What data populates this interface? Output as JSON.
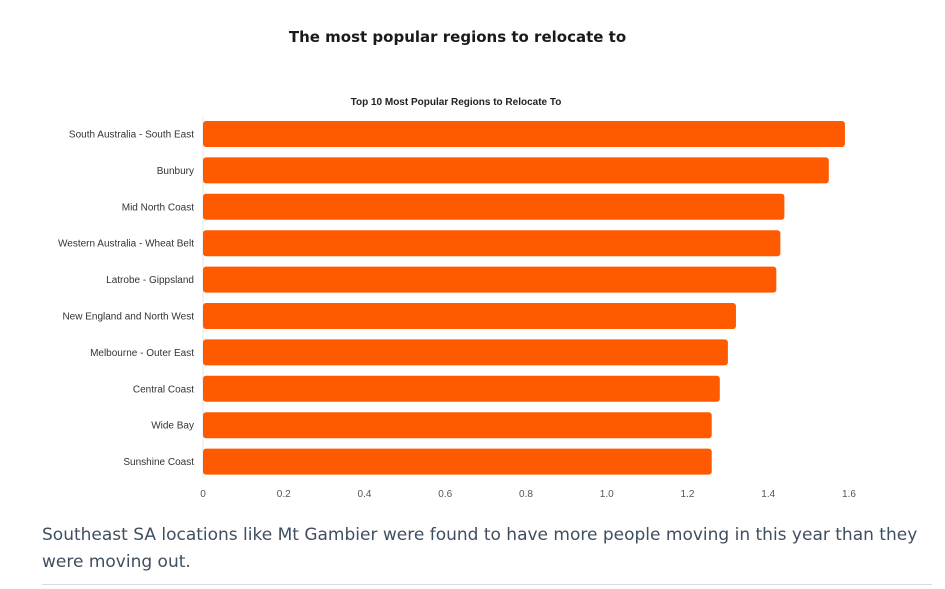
{
  "page": {
    "heading": "The most popular regions to relocate to",
    "caption": "Southeast SA locations like Mt Gambier were found to have more people moving in this year than they were moving out."
  },
  "chart_data": {
    "type": "bar",
    "orientation": "horizontal",
    "title": "Top 10 Most Popular Regions to Relocate To",
    "xlabel": "",
    "ylabel": "",
    "categories": [
      "South Australia - South East",
      "Bunbury",
      "Mid North Coast",
      "Western Australia - Wheat Belt",
      "Latrobe - Gippsland",
      "New England and North West",
      "Melbourne - Outer East",
      "Central Coast",
      "Wide Bay",
      "Sunshine Coast"
    ],
    "values": [
      1.59,
      1.55,
      1.44,
      1.43,
      1.42,
      1.32,
      1.3,
      1.28,
      1.26,
      1.26
    ],
    "xlim": [
      0,
      1.6
    ],
    "xticks": [
      0,
      0.2,
      0.4,
      0.6,
      0.8,
      1.0,
      1.2,
      1.4,
      1.6
    ],
    "xtick_labels": [
      "0",
      "0.2",
      "0.4",
      "0.6",
      "0.8",
      "1.0",
      "1.2",
      "1.4",
      "1.6"
    ],
    "bar_color": "#ff5a00",
    "grid": false,
    "legend": "none"
  }
}
